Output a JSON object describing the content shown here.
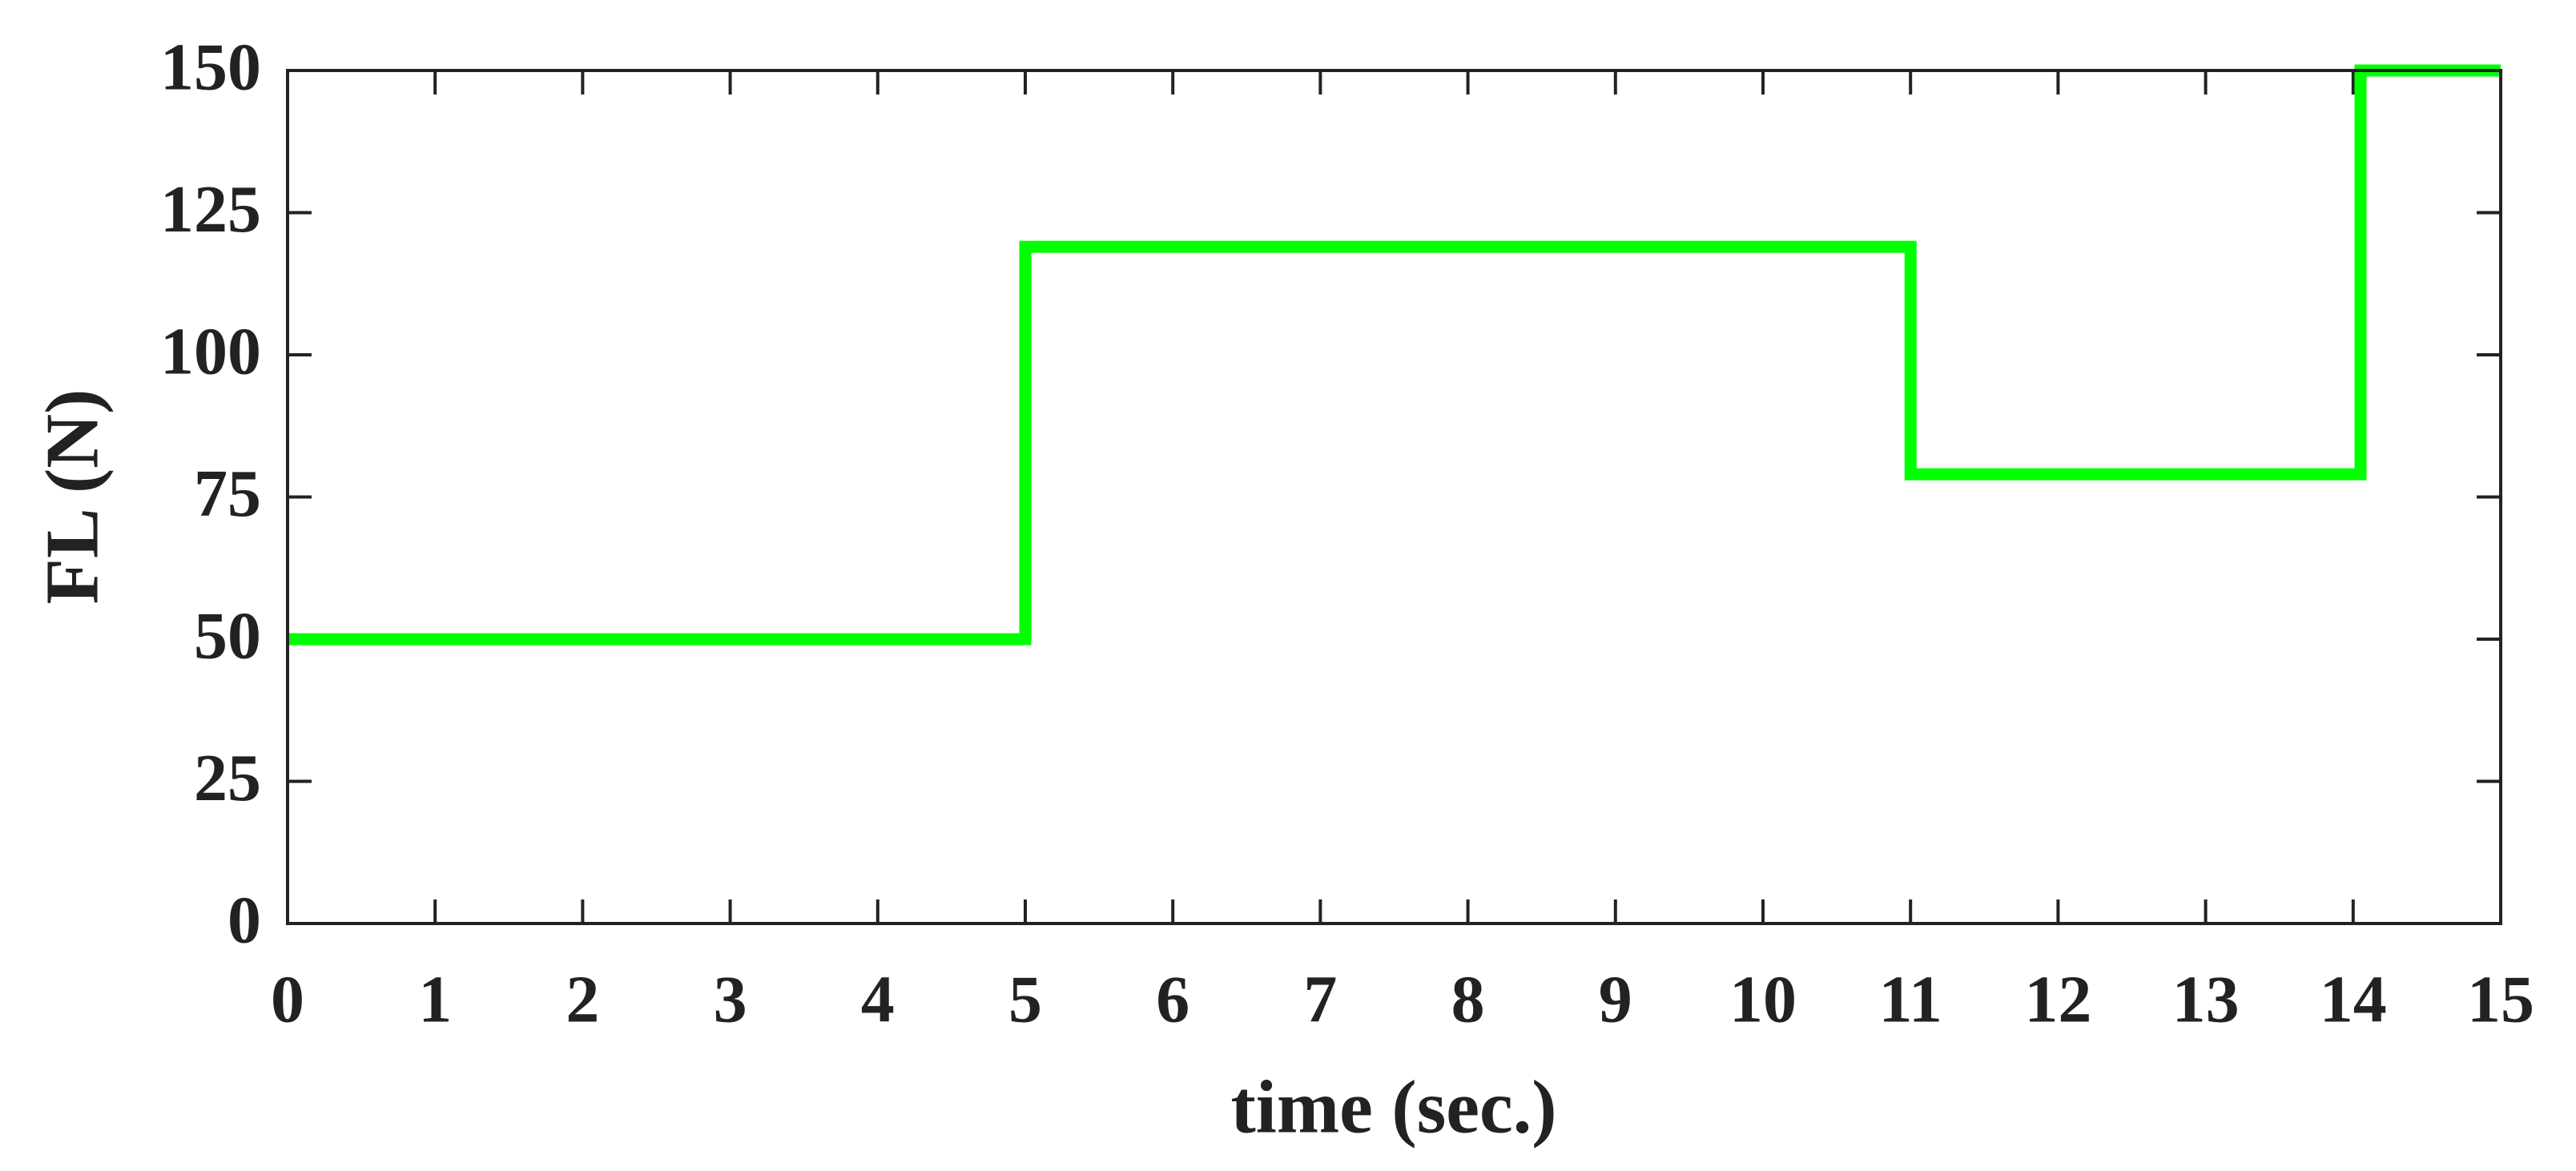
{
  "chart_data": {
    "type": "line",
    "x_label": "time (sec.)",
    "y_label": "FL (N)",
    "x": [
      0,
      5,
      5,
      11,
      11,
      14.05,
      14.05,
      15
    ],
    "series": [
      {
        "color": "#00ff00",
        "values": [
          50,
          50,
          119,
          119,
          79,
          79,
          150,
          150
        ]
      }
    ],
    "xlim": [
      0,
      15
    ],
    "xticks": [
      0,
      1,
      2,
      3,
      4,
      5,
      6,
      7,
      8,
      9,
      10,
      11,
      12,
      13,
      14,
      15
    ],
    "ylim": [
      0,
      150
    ],
    "yticks": [
      0,
      25,
      50,
      75,
      100,
      125,
      150
    ],
    "grid": false
  }
}
